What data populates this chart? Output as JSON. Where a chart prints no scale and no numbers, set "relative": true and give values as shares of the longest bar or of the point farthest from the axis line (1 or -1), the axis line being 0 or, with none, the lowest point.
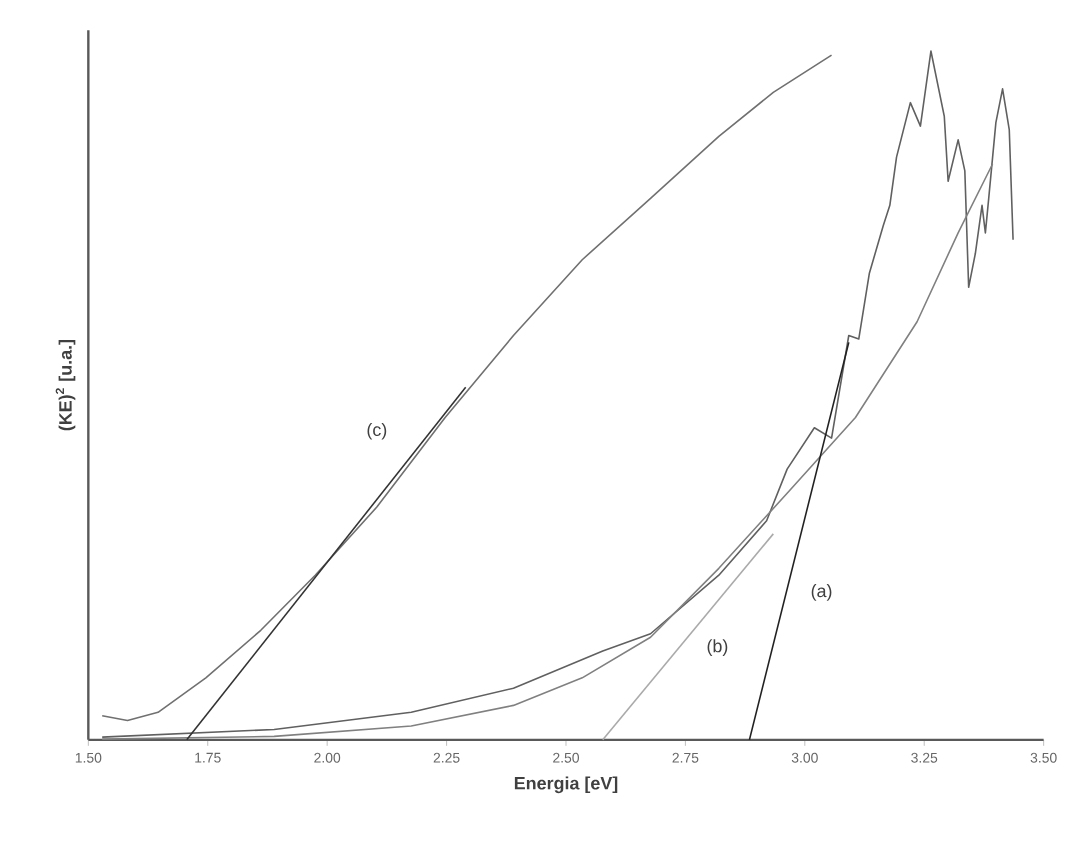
{
  "chart_data": {
    "type": "line",
    "relative": true,
    "xlabel": "Energia [eV]",
    "ylabel": "(KE)$^{2}$ [u.a.]",
    "xlim": [
      1.5,
      3.5
    ],
    "xticks": [
      {
        "value": 1.5,
        "label": "1.50"
      },
      {
        "value": 1.75,
        "label": "1.75"
      },
      {
        "value": 2.0,
        "label": "2.00"
      },
      {
        "value": 2.25,
        "label": "2.25"
      },
      {
        "value": 2.5,
        "label": "2.50"
      },
      {
        "value": 2.75,
        "label": "2.75"
      },
      {
        "value": 3.0,
        "label": "3.00"
      },
      {
        "value": 3.25,
        "label": "3.25"
      },
      {
        "value": 3.5,
        "label": "3.50"
      }
    ],
    "grid": false,
    "marker": "none",
    "line_style": "solid",
    "series": [
      {
        "color": "#707070",
        "x": [
          1.529,
          1.582,
          1.646,
          1.746,
          1.861,
          1.975,
          2.104,
          2.247,
          2.39,
          2.534,
          2.677,
          2.82,
          2.934,
          3.056
        ],
        "values": [
          0.035,
          0.028,
          0.04,
          0.09,
          0.159,
          0.239,
          0.338,
          0.468,
          0.587,
          0.697,
          0.786,
          0.876,
          0.94,
          0.994
        ]
      },
      {
        "color": "#606060",
        "x": [
          1.529,
          1.889,
          2.176,
          2.39,
          2.577,
          2.677,
          2.82,
          2.92,
          2.963,
          3.02,
          3.056,
          3.092,
          3.113,
          3.135,
          3.164,
          3.178,
          3.192,
          3.221,
          3.242,
          3.264,
          3.292,
          3.3,
          3.321,
          3.335,
          3.343,
          3.357,
          3.371,
          3.378,
          3.385,
          3.4,
          3.414,
          3.428,
          3.436
        ],
        "values": [
          0.004,
          0.015,
          0.04,
          0.075,
          0.129,
          0.154,
          0.239,
          0.318,
          0.393,
          0.453,
          0.438,
          0.587,
          0.582,
          0.677,
          0.746,
          0.776,
          0.846,
          0.925,
          0.891,
          1.0,
          0.905,
          0.811,
          0.871,
          0.826,
          0.657,
          0.706,
          0.776,
          0.736,
          0.786,
          0.896,
          0.945,
          0.886,
          0.726
        ]
      },
      {
        "color": "#808080",
        "x": [
          1.529,
          1.889,
          2.176,
          2.39,
          2.534,
          2.677,
          2.82,
          2.963,
          3.106,
          3.235,
          3.321,
          3.393
        ],
        "values": [
          0.001,
          0.005,
          0.02,
          0.05,
          0.09,
          0.149,
          0.249,
          0.358,
          0.468,
          0.607,
          0.736,
          0.836
        ]
      },
      {
        "color": "#333333",
        "x": [
          1.706,
          2.29
        ],
        "values": [
          0,
          0.512
        ]
      },
      {
        "color": "#aaaaaa",
        "x": [
          2.577,
          2.934
        ],
        "values": [
          0,
          0.299
        ]
      },
      {
        "color": "#222222",
        "x": [
          2.884,
          3.092
        ],
        "values": [
          0,
          0.577
        ]
      }
    ],
    "annotations": [
      {
        "text": "(c)",
        "x": 2.104,
        "y": 0.448
      },
      {
        "text": "(b)",
        "x": 2.817,
        "y": 0.134
      },
      {
        "text": "(a)",
        "x": 3.035,
        "y": 0.214
      }
    ]
  }
}
